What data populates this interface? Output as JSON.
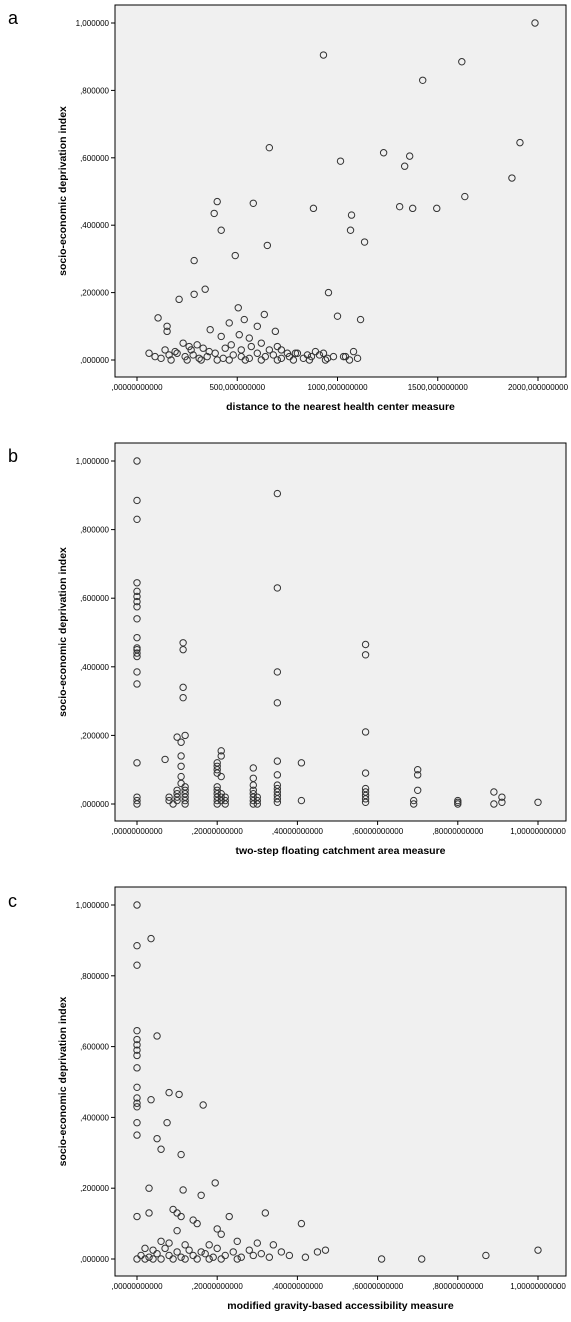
{
  "chart_data": [
    {
      "type": "scatter",
      "panel": "a",
      "xlabel": "distance to the nearest health center measure",
      "ylabel": "socio-economic deprivation index",
      "xlim": [
        0,
        2000
      ],
      "ylim": [
        0,
        1
      ],
      "xticks": [
        0,
        500,
        1000,
        1500,
        2000
      ],
      "xtick_labels": [
        ",00000000000",
        "500,000000000",
        "1000,000000000",
        "1500,000000000",
        "2000,000000000"
      ],
      "yticks": [
        0,
        0.2,
        0.4,
        0.6,
        0.8,
        1.0
      ],
      "ytick_labels": [
        ",000000",
        ",200000",
        ",400000",
        ",600000",
        ",800000",
        "1,000000"
      ],
      "points": [
        [
          1985,
          1.0
        ],
        [
          930,
          0.905
        ],
        [
          1620,
          0.885
        ],
        [
          1425,
          0.83
        ],
        [
          1910,
          0.645
        ],
        [
          660,
          0.63
        ],
        [
          1360,
          0.605
        ],
        [
          1230,
          0.615
        ],
        [
          1335,
          0.575
        ],
        [
          1015,
          0.59
        ],
        [
          1635,
          0.485
        ],
        [
          1870,
          0.54
        ],
        [
          1310,
          0.455
        ],
        [
          1375,
          0.45
        ],
        [
          1495,
          0.45
        ],
        [
          880,
          0.45
        ],
        [
          400,
          0.47
        ],
        [
          580,
          0.465
        ],
        [
          385,
          0.435
        ],
        [
          1070,
          0.43
        ],
        [
          1065,
          0.385
        ],
        [
          420,
          0.385
        ],
        [
          1135,
          0.35
        ],
        [
          650,
          0.34
        ],
        [
          490,
          0.31
        ],
        [
          285,
          0.295
        ],
        [
          340,
          0.21
        ],
        [
          955,
          0.2
        ],
        [
          285,
          0.195
        ],
        [
          210,
          0.18
        ],
        [
          505,
          0.155
        ],
        [
          1000,
          0.13
        ],
        [
          1115,
          0.12
        ],
        [
          105,
          0.125
        ],
        [
          150,
          0.1
        ],
        [
          150,
          0.085
        ],
        [
          535,
          0.12
        ],
        [
          635,
          0.135
        ],
        [
          690,
          0.085
        ],
        [
          600,
          0.1
        ],
        [
          460,
          0.11
        ],
        [
          365,
          0.09
        ],
        [
          420,
          0.07
        ],
        [
          510,
          0.075
        ],
        [
          560,
          0.065
        ],
        [
          230,
          0.05
        ],
        [
          300,
          0.045
        ],
        [
          260,
          0.04
        ],
        [
          330,
          0.035
        ],
        [
          470,
          0.045
        ],
        [
          620,
          0.05
        ],
        [
          720,
          0.03
        ],
        [
          800,
          0.02
        ],
        [
          890,
          0.025
        ],
        [
          1030,
          0.01
        ],
        [
          1080,
          0.025
        ],
        [
          60,
          0.02
        ],
        [
          90,
          0.01
        ],
        [
          120,
          0.005
        ],
        [
          160,
          0.015
        ],
        [
          200,
          0.02
        ],
        [
          240,
          0.01
        ],
        [
          280,
          0.015
        ],
        [
          310,
          0.005
        ],
        [
          350,
          0.01
        ],
        [
          390,
          0.02
        ],
        [
          430,
          0.005
        ],
        [
          480,
          0.015
        ],
        [
          520,
          0.01
        ],
        [
          560,
          0.005
        ],
        [
          600,
          0.02
        ],
        [
          640,
          0.01
        ],
        [
          680,
          0.015
        ],
        [
          720,
          0.005
        ],
        [
          760,
          0.01
        ],
        [
          790,
          0.02
        ],
        [
          830,
          0.005
        ],
        [
          870,
          0.01
        ],
        [
          910,
          0.015
        ],
        [
          950,
          0.005
        ],
        [
          1040,
          0.01
        ],
        [
          1100,
          0.005
        ],
        [
          140,
          0.03
        ],
        [
          190,
          0.025
        ],
        [
          270,
          0.03
        ],
        [
          360,
          0.025
        ],
        [
          440,
          0.035
        ],
        [
          520,
          0.03
        ],
        [
          570,
          0.04
        ],
        [
          660,
          0.03
        ],
        [
          700,
          0.04
        ],
        [
          750,
          0.02
        ],
        [
          850,
          0.015
        ],
        [
          930,
          0.02
        ],
        [
          980,
          0.01
        ],
        [
          1060,
          0.0
        ],
        [
          170,
          0.0
        ],
        [
          250,
          0.0
        ],
        [
          320,
          0.0
        ],
        [
          400,
          0.0
        ],
        [
          460,
          0.0
        ],
        [
          540,
          0.0
        ],
        [
          620,
          0.0
        ],
        [
          700,
          0.0
        ],
        [
          780,
          0.0
        ],
        [
          860,
          0.0
        ],
        [
          940,
          0.0
        ]
      ]
    },
    {
      "type": "scatter",
      "panel": "b",
      "xlabel": "two-step floating catchment area measure",
      "ylabel": "socio-economic deprivation index",
      "xlim": [
        0,
        1
      ],
      "ylim": [
        0,
        1
      ],
      "xticks": [
        0,
        0.2,
        0.4,
        0.6,
        0.8,
        1.0
      ],
      "xtick_labels": [
        ",00000000000",
        ",20000000000",
        ",40000000000",
        ",60000000000",
        ",80000000000",
        "1,00000000000"
      ],
      "yticks": [
        0,
        0.2,
        0.4,
        0.6,
        0.8,
        1.0
      ],
      "ytick_labels": [
        ",000000",
        ",200000",
        ",400000",
        ",600000",
        ",800000",
        "1,000000"
      ],
      "points": [
        [
          0,
          1.0
        ],
        [
          0,
          0.885
        ],
        [
          0,
          0.83
        ],
        [
          0,
          0.645
        ],
        [
          0,
          0.62
        ],
        [
          0,
          0.605
        ],
        [
          0,
          0.59
        ],
        [
          0,
          0.575
        ],
        [
          0,
          0.54
        ],
        [
          0,
          0.485
        ],
        [
          0,
          0.455
        ],
        [
          0,
          0.45
        ],
        [
          0,
          0.44
        ],
        [
          0,
          0.43
        ],
        [
          0,
          0.385
        ],
        [
          0,
          0.35
        ],
        [
          0,
          0.12
        ],
        [
          0,
          0.02
        ],
        [
          0,
          0.01
        ],
        [
          0,
          0.0
        ],
        [
          0.07,
          0.13
        ],
        [
          0.1,
          0.195
        ],
        [
          0.12,
          0.2
        ],
        [
          0.115,
          0.47
        ],
        [
          0.115,
          0.45
        ],
        [
          0.115,
          0.34
        ],
        [
          0.115,
          0.31
        ],
        [
          0.11,
          0.18
        ],
        [
          0.11,
          0.14
        ],
        [
          0.11,
          0.11
        ],
        [
          0.11,
          0.08
        ],
        [
          0.11,
          0.06
        ],
        [
          0.1,
          0.04
        ],
        [
          0.1,
          0.03
        ],
        [
          0.1,
          0.02
        ],
        [
          0.1,
          0.01
        ],
        [
          0.12,
          0.05
        ],
        [
          0.12,
          0.04
        ],
        [
          0.12,
          0.03
        ],
        [
          0.12,
          0.02
        ],
        [
          0.12,
          0.01
        ],
        [
          0.12,
          0.0
        ],
        [
          0.08,
          0.02
        ],
        [
          0.08,
          0.01
        ],
        [
          0.09,
          0.0
        ],
        [
          0.2,
          0.12
        ],
        [
          0.2,
          0.11
        ],
        [
          0.2,
          0.1
        ],
        [
          0.2,
          0.09
        ],
        [
          0.21,
          0.155
        ],
        [
          0.21,
          0.14
        ],
        [
          0.21,
          0.08
        ],
        [
          0.2,
          0.05
        ],
        [
          0.2,
          0.04
        ],
        [
          0.2,
          0.03
        ],
        [
          0.2,
          0.02
        ],
        [
          0.2,
          0.01
        ],
        [
          0.2,
          0.0
        ],
        [
          0.21,
          0.03
        ],
        [
          0.21,
          0.02
        ],
        [
          0.21,
          0.01
        ],
        [
          0.22,
          0.02
        ],
        [
          0.22,
          0.01
        ],
        [
          0.22,
          0.0
        ],
        [
          0.29,
          0.105
        ],
        [
          0.29,
          0.075
        ],
        [
          0.29,
          0.055
        ],
        [
          0.29,
          0.04
        ],
        [
          0.29,
          0.03
        ],
        [
          0.29,
          0.02
        ],
        [
          0.29,
          0.01
        ],
        [
          0.29,
          0.0
        ],
        [
          0.3,
          0.02
        ],
        [
          0.3,
          0.01
        ],
        [
          0.3,
          0.0
        ],
        [
          0.35,
          0.905
        ],
        [
          0.35,
          0.63
        ],
        [
          0.35,
          0.385
        ],
        [
          0.35,
          0.295
        ],
        [
          0.35,
          0.125
        ],
        [
          0.35,
          0.085
        ],
        [
          0.35,
          0.055
        ],
        [
          0.35,
          0.045
        ],
        [
          0.35,
          0.035
        ],
        [
          0.35,
          0.025
        ],
        [
          0.35,
          0.015
        ],
        [
          0.35,
          0.005
        ],
        [
          0.41,
          0.12
        ],
        [
          0.41,
          0.01
        ],
        [
          0.57,
          0.465
        ],
        [
          0.57,
          0.435
        ],
        [
          0.57,
          0.21
        ],
        [
          0.57,
          0.09
        ],
        [
          0.57,
          0.045
        ],
        [
          0.57,
          0.035
        ],
        [
          0.57,
          0.025
        ],
        [
          0.57,
          0.015
        ],
        [
          0.57,
          0.005
        ],
        [
          0.69,
          0.01
        ],
        [
          0.69,
          0.0
        ],
        [
          0.7,
          0.1
        ],
        [
          0.7,
          0.085
        ],
        [
          0.7,
          0.04
        ],
        [
          0.8,
          0.01
        ],
        [
          0.8,
          0.005
        ],
        [
          0.8,
          0.0
        ],
        [
          0.89,
          0.035
        ],
        [
          0.89,
          0.0
        ],
        [
          0.91,
          0.02
        ],
        [
          0.91,
          0.005
        ],
        [
          1.0,
          0.005
        ]
      ]
    },
    {
      "type": "scatter",
      "panel": "c",
      "xlabel": "modified gravity-based accessibility measure",
      "ylabel": "socio-economic deprivation index",
      "xlim": [
        0,
        1
      ],
      "ylim": [
        0,
        1
      ],
      "xticks": [
        0,
        0.2,
        0.4,
        0.6,
        0.8,
        1.0
      ],
      "xtick_labels": [
        ",00000000000",
        ",20000000000",
        ",40000000000",
        ",60000000000",
        ",80000000000",
        "1,00000000000"
      ],
      "yticks": [
        0,
        0.2,
        0.4,
        0.6,
        0.8,
        1.0
      ],
      "ytick_labels": [
        ",000000",
        ",200000",
        ",400000",
        ",600000",
        ",800000",
        "1,000000"
      ],
      "points": [
        [
          0,
          1.0
        ],
        [
          0,
          0.885
        ],
        [
          0,
          0.83
        ],
        [
          0.035,
          0.905
        ],
        [
          0.05,
          0.63
        ],
        [
          0,
          0.645
        ],
        [
          0,
          0.62
        ],
        [
          0,
          0.605
        ],
        [
          0,
          0.59
        ],
        [
          0,
          0.575
        ],
        [
          0,
          0.54
        ],
        [
          0,
          0.485
        ],
        [
          0,
          0.455
        ],
        [
          0,
          0.44
        ],
        [
          0,
          0.43
        ],
        [
          0,
          0.385
        ],
        [
          0,
          0.35
        ],
        [
          0.035,
          0.45
        ],
        [
          0.08,
          0.47
        ],
        [
          0.105,
          0.465
        ],
        [
          0.165,
          0.435
        ],
        [
          0.075,
          0.385
        ],
        [
          0.05,
          0.34
        ],
        [
          0.06,
          0.31
        ],
        [
          0.11,
          0.295
        ],
        [
          0.03,
          0.2
        ],
        [
          0.195,
          0.215
        ],
        [
          0.115,
          0.195
        ],
        [
          0.16,
          0.18
        ],
        [
          0.09,
          0.14
        ],
        [
          0.1,
          0.13
        ],
        [
          0.03,
          0.13
        ],
        [
          0,
          0.12
        ],
        [
          0.11,
          0.12
        ],
        [
          0.32,
          0.13
        ],
        [
          0.23,
          0.12
        ],
        [
          0.15,
          0.1
        ],
        [
          0.14,
          0.11
        ],
        [
          0.41,
          0.1
        ],
        [
          0.1,
          0.08
        ],
        [
          0.2,
          0.085
        ],
        [
          0.21,
          0.07
        ],
        [
          0.06,
          0.05
        ],
        [
          0.08,
          0.045
        ],
        [
          0.12,
          0.04
        ],
        [
          0.18,
          0.04
        ],
        [
          0.25,
          0.05
        ],
        [
          0.3,
          0.045
        ],
        [
          0.34,
          0.04
        ],
        [
          0.47,
          0.025
        ],
        [
          0.45,
          0.02
        ],
        [
          0.02,
          0.03
        ],
        [
          0.04,
          0.025
        ],
        [
          0.07,
          0.03
        ],
        [
          0.1,
          0.02
        ],
        [
          0.13,
          0.025
        ],
        [
          0.16,
          0.02
        ],
        [
          0.2,
          0.03
        ],
        [
          0.24,
          0.02
        ],
        [
          0.28,
          0.025
        ],
        [
          0.31,
          0.015
        ],
        [
          0.36,
          0.02
        ],
        [
          0.01,
          0.01
        ],
        [
          0.03,
          0.005
        ],
        [
          0.05,
          0.015
        ],
        [
          0.08,
          0.01
        ],
        [
          0.11,
          0.005
        ],
        [
          0.14,
          0.01
        ],
        [
          0.17,
          0.015
        ],
        [
          0.19,
          0.005
        ],
        [
          0.22,
          0.01
        ],
        [
          0.26,
          0.005
        ],
        [
          0.29,
          0.01
        ],
        [
          0.33,
          0.005
        ],
        [
          0.38,
          0.01
        ],
        [
          0.42,
          0.005
        ],
        [
          0,
          0.0
        ],
        [
          0.02,
          0.0
        ],
        [
          0.04,
          0.0
        ],
        [
          0.06,
          0.0
        ],
        [
          0.09,
          0.0
        ],
        [
          0.12,
          0.0
        ],
        [
          0.15,
          0.0
        ],
        [
          0.18,
          0.0
        ],
        [
          0.21,
          0.0
        ],
        [
          0.25,
          0.0
        ],
        [
          0.61,
          0.0
        ],
        [
          0.71,
          0.0
        ],
        [
          0.87,
          0.01
        ],
        [
          1.0,
          0.025
        ]
      ]
    }
  ]
}
